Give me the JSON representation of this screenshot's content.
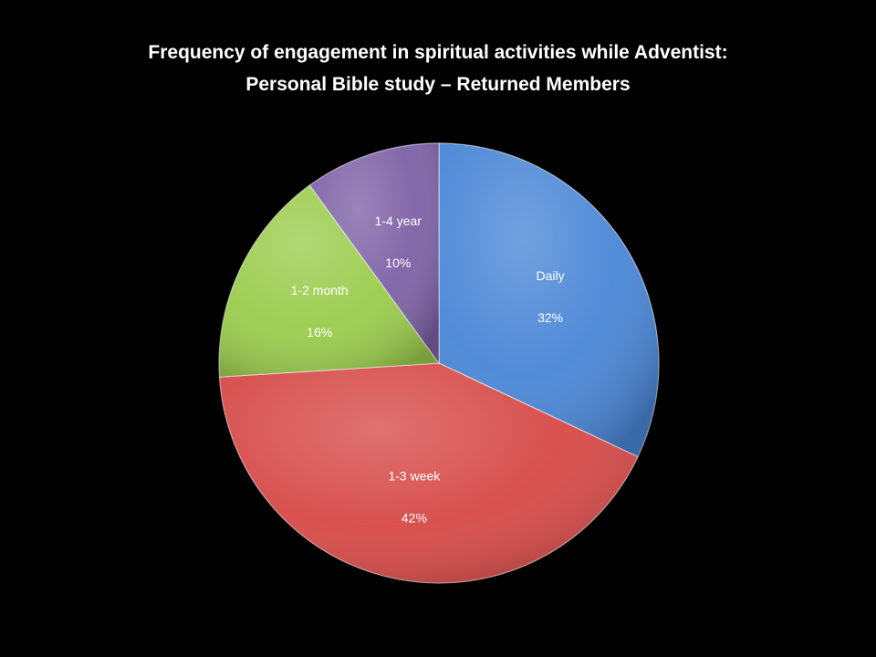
{
  "chart_data": {
    "type": "pie",
    "title": "Frequency of engagement in spiritual activities while Adventist:",
    "subtitle": "Personal Bible study – Returned Members",
    "slices": [
      {
        "label": "Daily",
        "value": 32,
        "value_text": "32%",
        "color": "#4a86d6"
      },
      {
        "label": "1-3 week",
        "value": 42,
        "value_text": "42%",
        "color": "#d64a48"
      },
      {
        "label": "1-2 month",
        "value": 16,
        "value_text": "16%",
        "color": "#9bcc4d"
      },
      {
        "label": "1-4 year",
        "value": 10,
        "value_text": "10%",
        "color": "#7e62a6"
      }
    ],
    "start": "12 o'clock",
    "direction": "clockwise",
    "legend": "none"
  }
}
